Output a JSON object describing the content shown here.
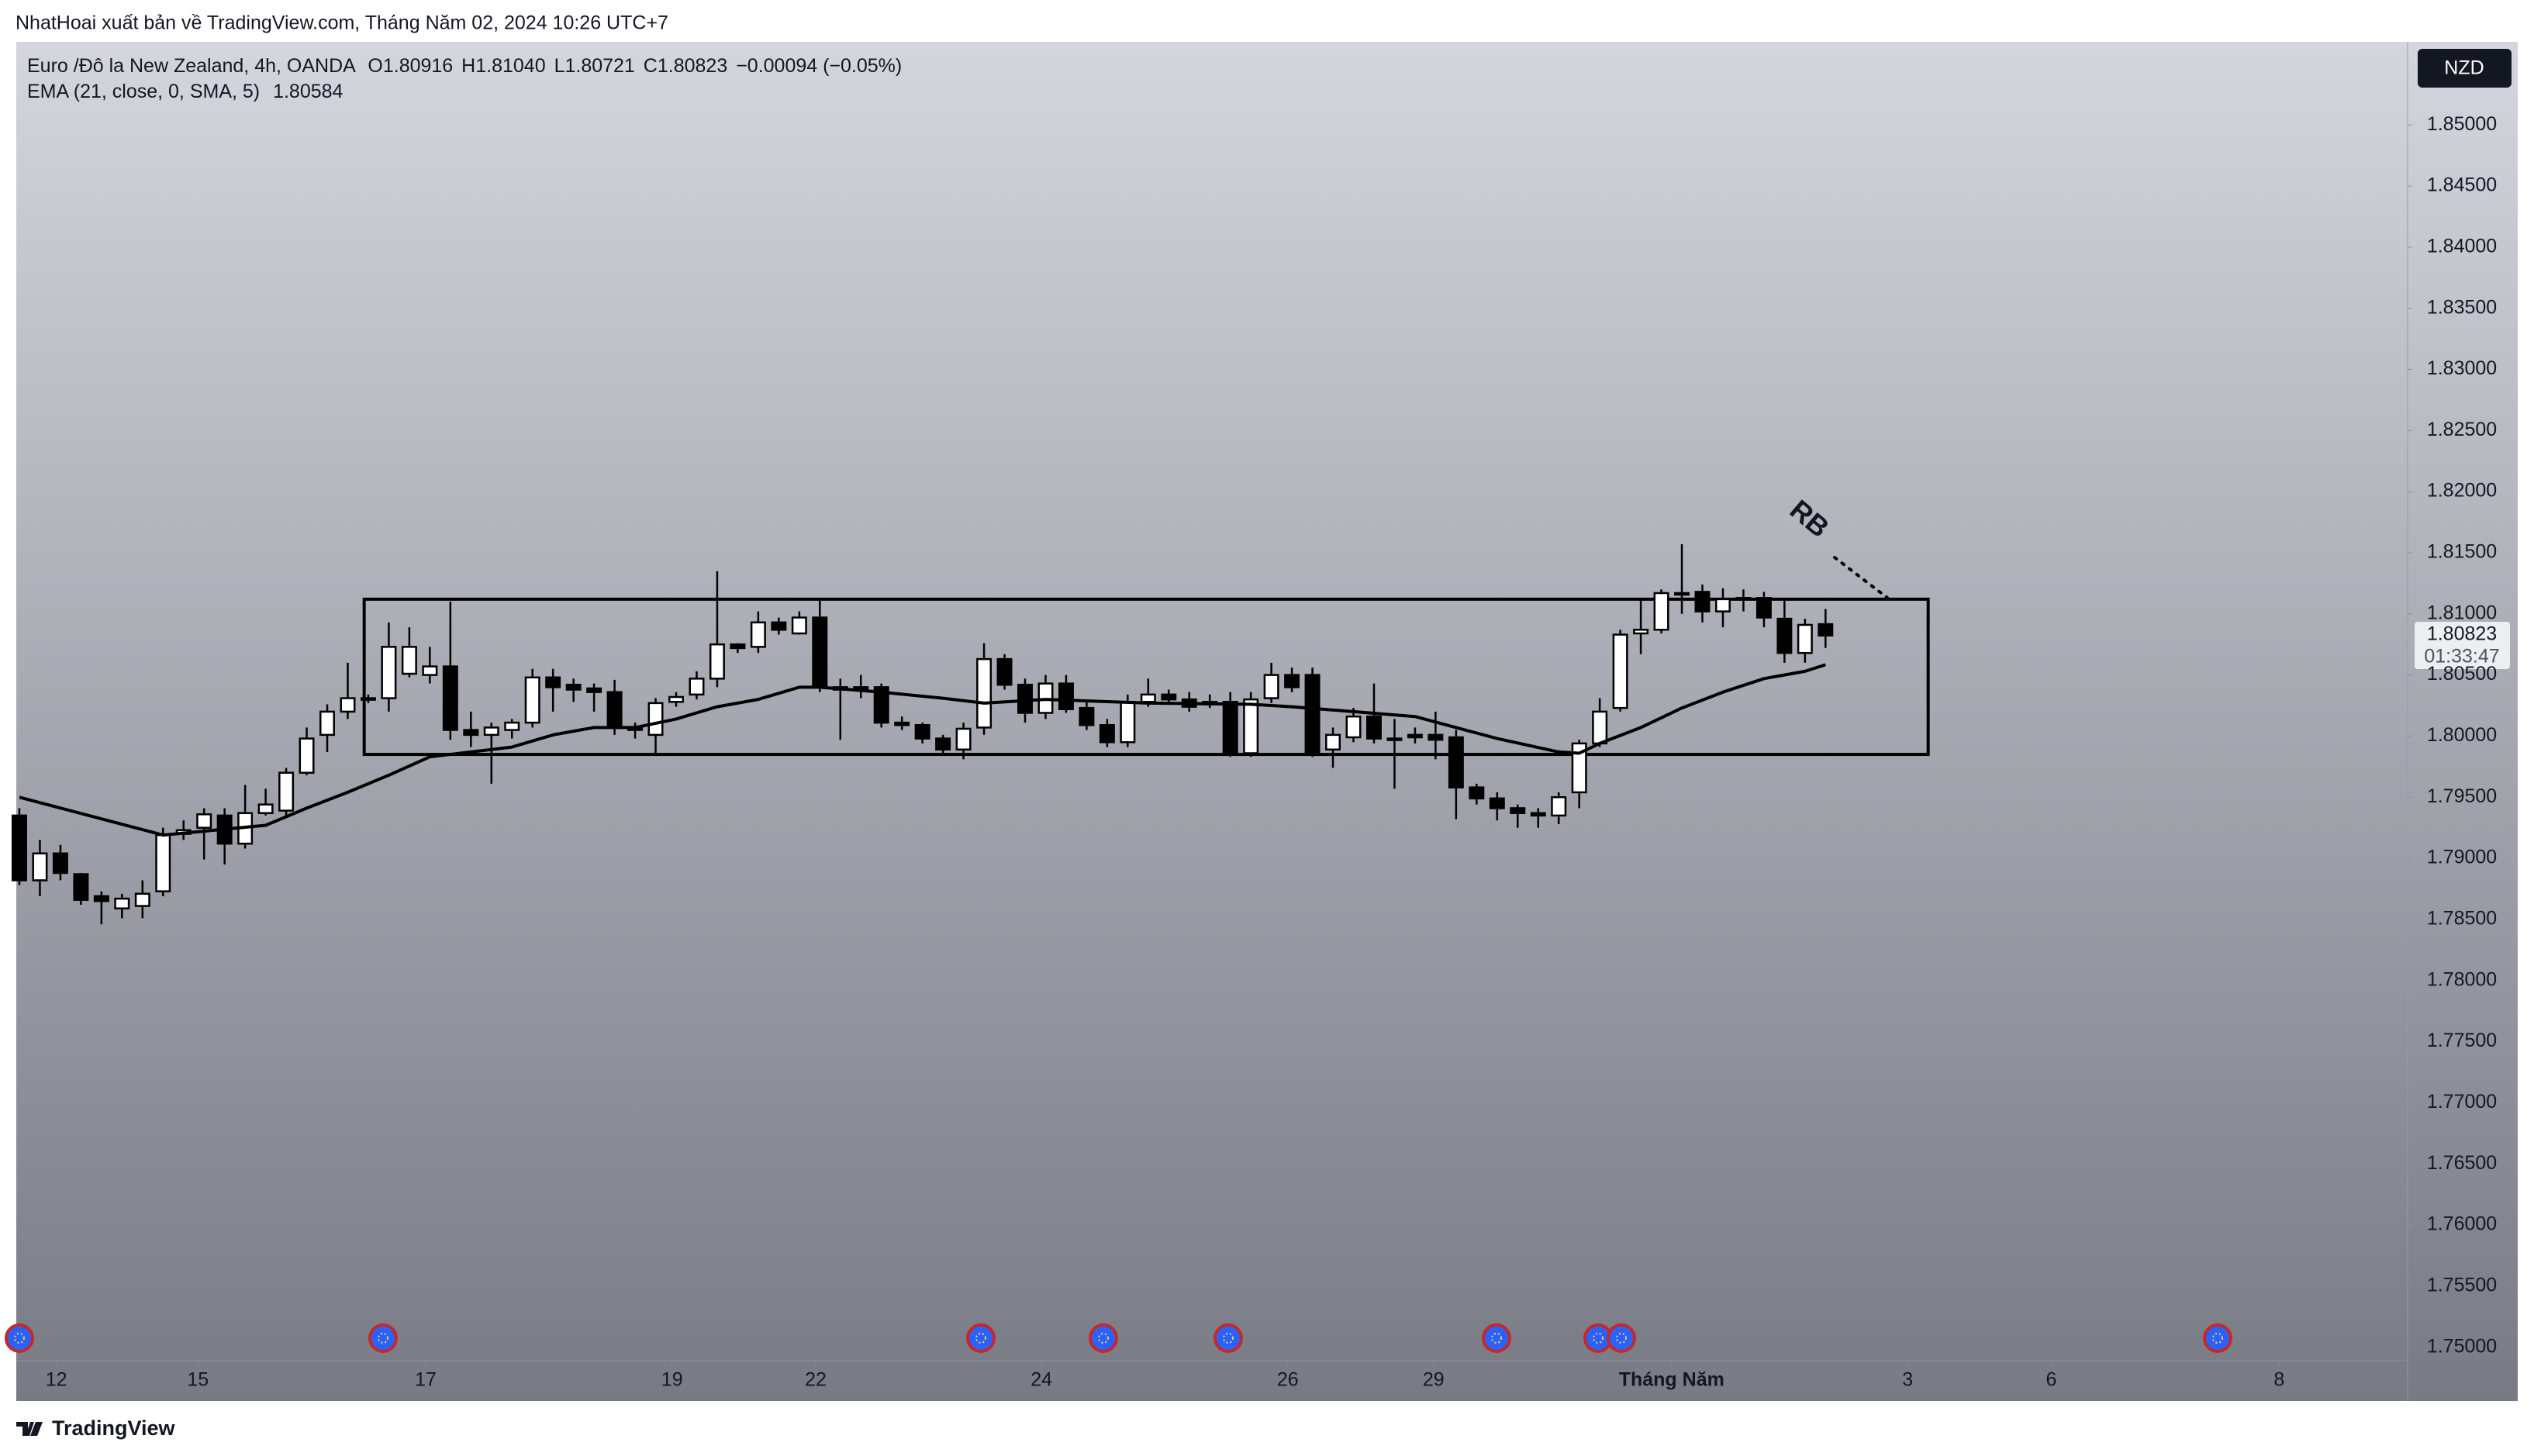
{
  "header": {
    "byline": "NhatHoai xuất bản về TradingView.com, Tháng Năm 02, 2024 10:26 UTC+7"
  },
  "chart_data": {
    "type": "candlestick",
    "symbol": "Euro /Đô la New Zealand, 4h, OANDA",
    "ohlc_legend": [
      [
        "O",
        "1.80916"
      ],
      [
        "H",
        "1.81040"
      ],
      [
        "L",
        "1.80721"
      ],
      [
        "C",
        "1.80823"
      ]
    ],
    "change": "−0.00094 (−0.05%)",
    "currency": "NZD",
    "countdown": "01:33:47",
    "annotation": "RB",
    "up_color": "#ffffff",
    "down_color": "#000000",
    "grid": false,
    "ohlc": [
      [
        1.7935,
        1.7941,
        1.7878,
        1.7882
      ],
      [
        1.7882,
        1.7915,
        1.7869,
        1.7904
      ],
      [
        1.7904,
        1.7911,
        1.7882,
        1.7888
      ],
      [
        1.7887,
        1.7888,
        1.7862,
        1.7866
      ],
      [
        1.7869,
        1.7873,
        1.7846,
        1.7865
      ],
      [
        1.7859,
        1.7871,
        1.7851,
        1.7867
      ],
      [
        1.7861,
        1.7882,
        1.7851,
        1.7871
      ],
      [
        1.7873,
        1.7925,
        1.7869,
        1.7919
      ],
      [
        1.792,
        1.7931,
        1.7915,
        1.7923
      ],
      [
        1.7925,
        1.7941,
        1.7899,
        1.7936
      ],
      [
        1.7935,
        1.7941,
        1.7895,
        1.7912
      ],
      [
        1.7912,
        1.796,
        1.7908,
        1.7937
      ],
      [
        1.7937,
        1.7957,
        1.7935,
        1.7944
      ],
      [
        1.7939,
        1.7974,
        1.7935,
        1.797
      ],
      [
        1.797,
        1.8007,
        1.7968,
        1.7998
      ],
      [
        1.8001,
        1.8026,
        1.7987,
        1.802
      ],
      [
        1.802,
        1.806,
        1.8014,
        1.8031
      ],
      [
        1.8031,
        1.8034,
        1.8027,
        1.803
      ],
      [
        1.8031,
        1.8093,
        1.802,
        1.8073
      ],
      [
        1.8051,
        1.8089,
        1.8048,
        1.8073
      ],
      [
        1.805,
        1.8073,
        1.8043,
        1.8057
      ],
      [
        1.8057,
        1.811,
        1.7997,
        1.8005
      ],
      [
        1.8005,
        1.802,
        1.7991,
        1.8001
      ],
      [
        1.8001,
        1.8011,
        1.7961,
        1.8007
      ],
      [
        1.8005,
        1.8014,
        1.7998,
        1.8011
      ],
      [
        1.8011,
        1.8055,
        1.8007,
        1.8048
      ],
      [
        1.8048,
        1.8055,
        1.802,
        1.804
      ],
      [
        1.8042,
        1.8047,
        1.8028,
        1.8038
      ],
      [
        1.8039,
        1.8043,
        1.802,
        1.8036
      ],
      [
        1.8036,
        1.8046,
        1.8001,
        1.8007
      ],
      [
        1.8007,
        1.8011,
        1.7998,
        1.8005
      ],
      [
        1.8001,
        1.8031,
        1.7985,
        1.8027
      ],
      [
        1.8028,
        1.8036,
        1.8024,
        1.8032
      ],
      [
        1.8034,
        1.8053,
        1.803,
        1.8047
      ],
      [
        1.8047,
        1.8135,
        1.804,
        1.8075
      ],
      [
        1.8075,
        1.8076,
        1.8068,
        1.8072
      ],
      [
        1.8073,
        1.8102,
        1.8068,
        1.8093
      ],
      [
        1.8093,
        1.8097,
        1.8083,
        1.8087
      ],
      [
        1.8084,
        1.8102,
        1.8083,
        1.8097
      ],
      [
        1.8097,
        1.8113,
        1.8036,
        1.804
      ],
      [
        1.804,
        1.8047,
        1.7997,
        1.8038
      ],
      [
        1.804,
        1.805,
        1.8031,
        1.8039
      ],
      [
        1.804,
        1.8043,
        1.8007,
        1.8011
      ],
      [
        1.8011,
        1.8016,
        1.8005,
        1.8009
      ],
      [
        1.8009,
        1.8011,
        1.7994,
        1.7998
      ],
      [
        1.7998,
        1.8001,
        1.7986,
        1.7989
      ],
      [
        1.7989,
        1.8011,
        1.7981,
        1.8006
      ],
      [
        1.8007,
        1.8076,
        1.8001,
        1.8063
      ],
      [
        1.8063,
        1.8067,
        1.8038,
        1.8042
      ],
      [
        1.8042,
        1.8047,
        1.8011,
        1.8019
      ],
      [
        1.8019,
        1.805,
        1.8014,
        1.8043
      ],
      [
        1.8043,
        1.805,
        1.8019,
        1.8022
      ],
      [
        1.8023,
        1.8028,
        1.8005,
        1.8009
      ],
      [
        1.8009,
        1.8014,
        1.7991,
        1.7995
      ],
      [
        1.7995,
        1.8034,
        1.7991,
        1.8028
      ],
      [
        1.8028,
        1.8047,
        1.8024,
        1.8034
      ],
      [
        1.8034,
        1.8038,
        1.8026,
        1.803
      ],
      [
        1.803,
        1.8036,
        1.802,
        1.8024
      ],
      [
        1.8028,
        1.8034,
        1.8023,
        1.8026
      ],
      [
        1.8028,
        1.8036,
        1.7983,
        1.7986
      ],
      [
        1.7986,
        1.8036,
        1.7983,
        1.803
      ],
      [
        1.8031,
        1.806,
        1.8027,
        1.805
      ],
      [
        1.805,
        1.8056,
        1.8036,
        1.804
      ],
      [
        1.805,
        1.8056,
        1.7983,
        1.7987
      ],
      [
        1.7989,
        1.8007,
        1.7974,
        1.8001
      ],
      [
        1.7999,
        1.8023,
        1.7995,
        1.8016
      ],
      [
        1.8016,
        1.8043,
        1.7994,
        1.7998
      ],
      [
        1.7998,
        1.8014,
        1.7957,
        1.7997
      ],
      [
        1.8001,
        1.8007,
        1.7994,
        1.7999
      ],
      [
        1.8001,
        1.802,
        1.7981,
        1.7997
      ],
      [
        1.7999,
        1.8005,
        1.7932,
        1.7958
      ],
      [
        1.7958,
        1.7961,
        1.7944,
        1.7949
      ],
      [
        1.7949,
        1.7954,
        1.7931,
        1.7941
      ],
      [
        1.7941,
        1.7944,
        1.7925,
        1.7937
      ],
      [
        1.7937,
        1.7941,
        1.7925,
        1.7935
      ],
      [
        1.7935,
        1.7954,
        1.7928,
        1.795
      ],
      [
        1.7954,
        1.7997,
        1.7941,
        1.7994
      ],
      [
        1.7994,
        1.8031,
        1.7991,
        1.802
      ],
      [
        1.8023,
        1.8087,
        1.802,
        1.8083
      ],
      [
        1.8084,
        1.8113,
        1.8067,
        1.8087
      ],
      [
        1.8087,
        1.812,
        1.8084,
        1.8117
      ],
      [
        1.8116,
        1.8157,
        1.81,
        1.8117
      ],
      [
        1.8118,
        1.8124,
        1.8093,
        1.8102
      ],
      [
        1.8102,
        1.8121,
        1.8089,
        1.8112
      ],
      [
        1.8113,
        1.812,
        1.8102,
        1.8112
      ],
      [
        1.8113,
        1.8118,
        1.8089,
        1.8097
      ],
      [
        1.8096,
        1.8113,
        1.806,
        1.8068
      ],
      [
        1.8068,
        1.8096,
        1.806,
        1.8091
      ],
      [
        1.80916,
        1.8104,
        1.80721,
        1.80823
      ]
    ],
    "ema": {
      "name": "EMA (21, close, 0, SMA, 5)",
      "color": "#000000",
      "x": [
        0,
        7,
        12,
        14,
        16,
        18,
        20,
        22,
        24,
        26,
        28,
        30,
        32,
        34,
        36,
        38,
        39,
        42,
        45,
        47,
        50,
        55,
        60,
        62,
        65,
        68,
        70,
        72,
        75,
        76,
        77,
        79,
        81,
        83,
        85,
        87,
        88
      ],
      "values": [
        1.795,
        1.7919,
        1.7927,
        1.7941,
        1.7954,
        1.7968,
        1.7983,
        1.7987,
        1.7991,
        1.8001,
        1.8007,
        1.8007,
        1.8014,
        1.8024,
        1.803,
        1.804,
        1.804,
        1.8036,
        1.8031,
        1.8027,
        1.803,
        1.8027,
        1.8026,
        1.8024,
        1.802,
        1.8016,
        1.8007,
        1.7998,
        1.7987,
        1.7986,
        1.7994,
        1.8007,
        1.8023,
        1.8036,
        1.8047,
        1.8053,
        1.80584
      ]
    },
    "range_box": {
      "x": [
        16.8,
        93
      ],
      "y": [
        1.7985,
        1.8112
      ]
    },
    "xlim": [
      -0.15,
      116.36
    ],
    "ylim": [
      1.7489,
      1.8568
    ],
    "xticks": [
      {
        "value": 1.8,
        "label": "12"
      },
      {
        "value": 8.7,
        "label": "15"
      },
      {
        "value": 19.8,
        "label": "17"
      },
      {
        "value": 31.8,
        "label": "19"
      },
      {
        "value": 38.8,
        "label": "22"
      },
      {
        "value": 49.8,
        "label": "24"
      },
      {
        "value": 61.8,
        "label": "26"
      },
      {
        "value": 68.9,
        "label": "29"
      },
      {
        "value": 80.5,
        "label": "Tháng Năm"
      },
      {
        "value": 92.0,
        "label": "3"
      },
      {
        "value": 99.0,
        "label": "6"
      },
      {
        "value": 110.1,
        "label": "8"
      }
    ],
    "yticks": [
      {
        "value": 1.75,
        "label": "1.75000"
      },
      {
        "value": 1.755,
        "label": "1.75500"
      },
      {
        "value": 1.76,
        "label": "1.76000"
      },
      {
        "value": 1.765,
        "label": "1.76500"
      },
      {
        "value": 1.77,
        "label": "1.77000"
      },
      {
        "value": 1.775,
        "label": "1.77500"
      },
      {
        "value": 1.78,
        "label": "1.78000"
      },
      {
        "value": 1.785,
        "label": "1.78500"
      },
      {
        "value": 1.79,
        "label": "1.79000"
      },
      {
        "value": 1.795,
        "label": "1.79500"
      },
      {
        "value": 1.8,
        "label": "1.80000"
      },
      {
        "value": 1.805,
        "label": "1.80500"
      },
      {
        "value": 1.81,
        "label": "1.81000"
      },
      {
        "value": 1.815,
        "label": "1.81500"
      },
      {
        "value": 1.82,
        "label": "1.82000"
      },
      {
        "value": 1.825,
        "label": "1.82500"
      },
      {
        "value": 1.83,
        "label": "1.83000"
      },
      {
        "value": 1.835,
        "label": "1.83500"
      },
      {
        "value": 1.84,
        "label": "1.84000"
      },
      {
        "value": 1.845,
        "label": "1.84500"
      },
      {
        "value": 1.85,
        "label": "1.85000"
      }
    ]
  },
  "footer": {
    "brand": "TradingView"
  }
}
